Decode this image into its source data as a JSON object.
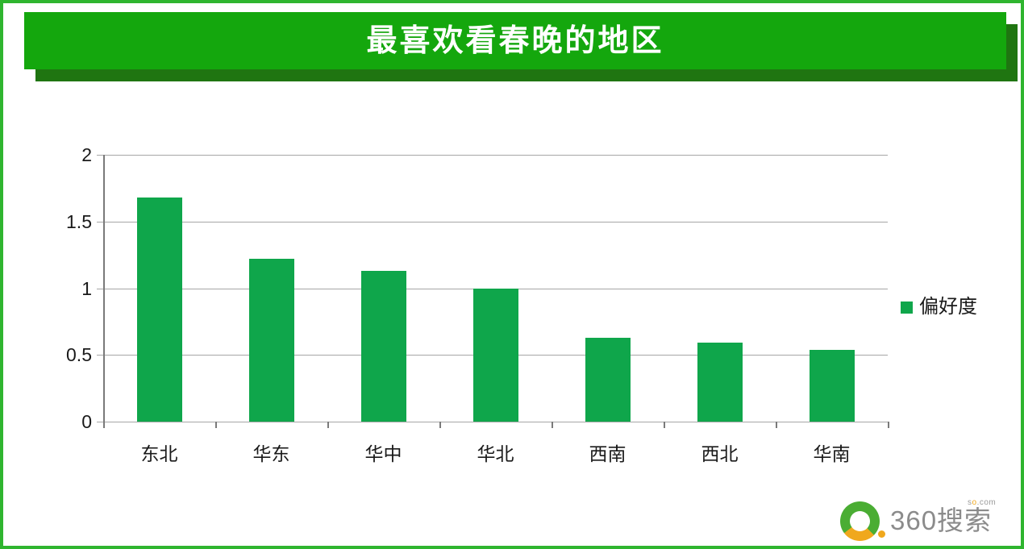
{
  "page": {
    "border_color": "#2fb52f",
    "background": "#ffffff"
  },
  "banner": {
    "title": "最喜欢看春晚的地区",
    "bg_color": "#14a70d",
    "shadow_color": "#1f7511",
    "text_color": "#ffffff"
  },
  "chart_data": {
    "type": "bar",
    "title": "最喜欢看春晚的地区",
    "categories": [
      "东北",
      "华东",
      "华中",
      "华北",
      "西南",
      "西北",
      "华南"
    ],
    "series": [
      {
        "name": "偏好度",
        "values": [
          1.68,
          1.22,
          1.13,
          1.0,
          0.63,
          0.59,
          0.54
        ]
      }
    ],
    "xlabel": "",
    "ylabel": "",
    "ylim": [
      0,
      2
    ],
    "yticks": [
      0,
      0.5,
      1,
      1.5,
      2
    ],
    "ytick_labels": [
      "0",
      "0.5",
      "1",
      "1.5",
      "2"
    ],
    "grid": true,
    "legend_position": "right",
    "bar_color": "#0fa64b",
    "gridline_color": "#a6a6a6",
    "axis_color": "#7a7a7a"
  },
  "legend": {
    "label": "偏好度",
    "swatch_color": "#0fa64b"
  },
  "logo": {
    "text": "360搜索",
    "superscript_prefix": "s",
    "superscript_o": "o",
    "superscript_suffix": ".com",
    "ring_green": "#4aad33",
    "ring_yellow": "#f0a81d",
    "text_color": "#8b8b8b"
  }
}
